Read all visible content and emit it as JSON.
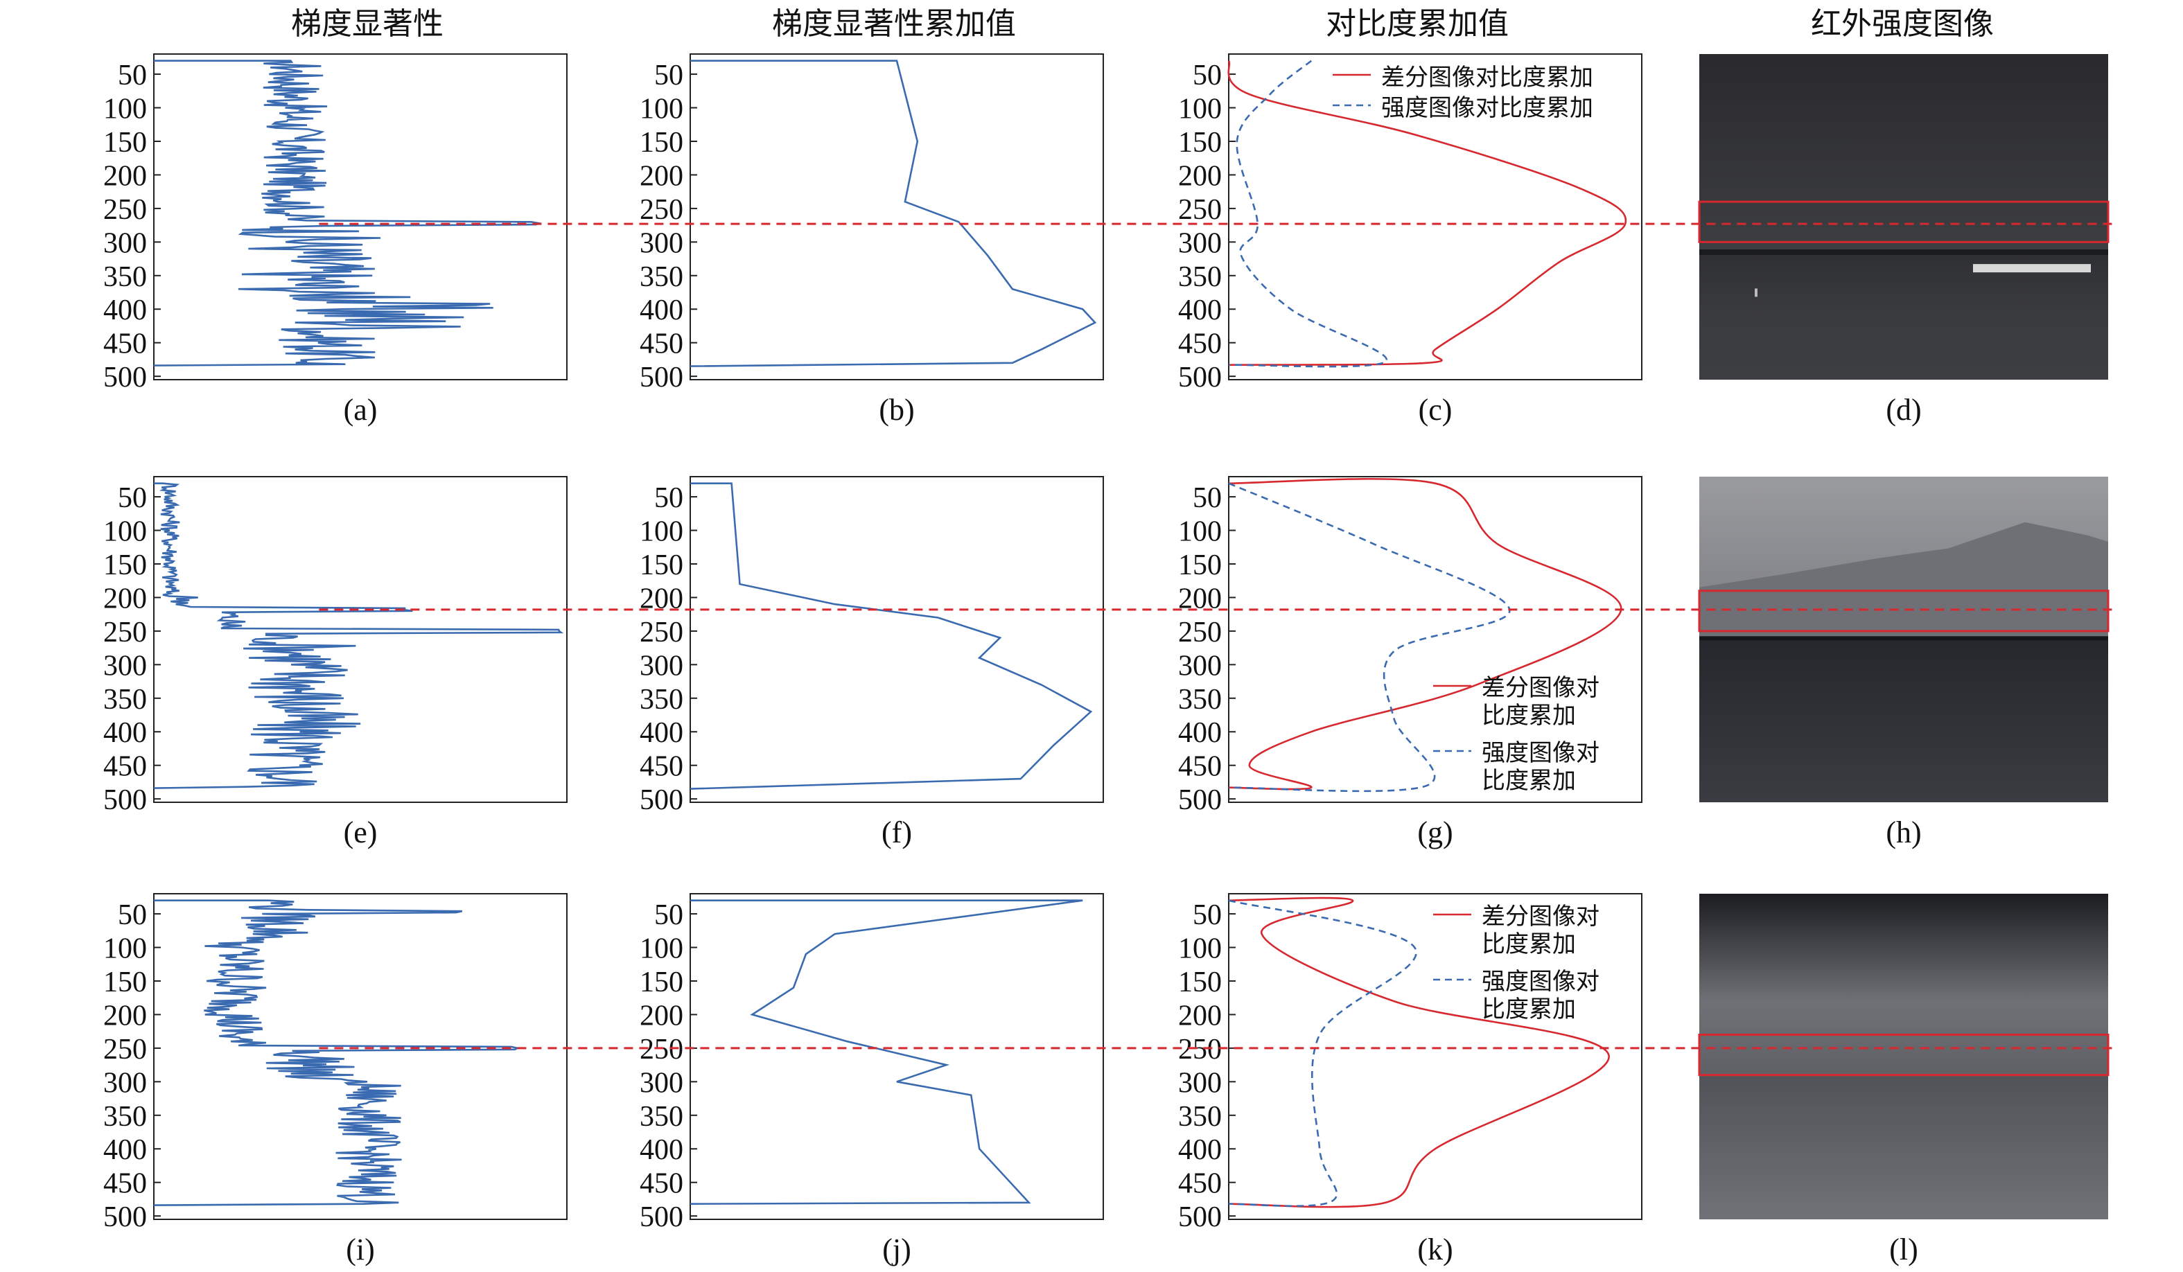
{
  "column_titles": [
    "梯度显著性",
    "梯度显著性累加值",
    "对比度累加值",
    "红外强度图像"
  ],
  "panel_labels": [
    "(a)",
    "(b)",
    "(c)",
    "(d)",
    "(e)",
    "(f)",
    "(g)",
    "(h)",
    "(i)",
    "(j)",
    "(k)",
    "(l)"
  ],
  "y_ticks": [
    "50",
    "100",
    "150",
    "200",
    "250",
    "300",
    "350",
    "400",
    "450",
    "500"
  ],
  "legend": {
    "diff_oneline": "差分图像对比度累加",
    "int_oneline": "强度图像对比度累加",
    "diff_line1": "差分图像对",
    "int_line1": "强度图像对",
    "line2": "比度累加"
  },
  "colors": {
    "blue": "#3a6ab0",
    "red": "#d7282f",
    "dash": "#d7282f"
  },
  "chart_data": [
    {
      "panel": "(a)",
      "type": "line",
      "ylim": [
        20,
        505
      ],
      "y_inverted": true,
      "threshold_row": 273,
      "series": [
        {
          "name": "梯度显著性",
          "x_range": [
            0.3,
            0.95
          ],
          "profile": "gradient"
        }
      ]
    },
    {
      "panel": "(b)",
      "type": "line",
      "ylim": [
        20,
        505
      ],
      "y_inverted": true,
      "threshold_row": 273,
      "series": [
        {
          "name": "梯度显著性累加值",
          "values": [
            [
              0,
              30
            ],
            [
              0.5,
              30
            ],
            [
              0.55,
              150
            ],
            [
              0.52,
              240
            ],
            [
              0.65,
              270
            ],
            [
              0.72,
              320
            ],
            [
              0.78,
              370
            ],
            [
              0.95,
              400
            ],
            [
              0.98,
              420
            ],
            [
              0.85,
              460
            ],
            [
              0.78,
              480
            ],
            [
              0,
              485
            ]
          ]
        }
      ]
    },
    {
      "panel": "(c)",
      "type": "line",
      "ylim": [
        20,
        505
      ],
      "y_inverted": true,
      "threshold_row": 273,
      "series": [
        {
          "name": "差分图像对比度累加",
          "values": [
            [
              0,
              30
            ],
            [
              0.05,
              80
            ],
            [
              0.45,
              140
            ],
            [
              0.85,
              220
            ],
            [
              0.96,
              273
            ],
            [
              0.8,
              330
            ],
            [
              0.65,
              400
            ],
            [
              0.5,
              460
            ],
            [
              0.48,
              480
            ],
            [
              0,
              483
            ]
          ]
        },
        {
          "name": "强度图像对比度累加",
          "values": [
            [
              0.2,
              30
            ],
            [
              0.1,
              80
            ],
            [
              0.02,
              150
            ],
            [
              0.07,
              273
            ],
            [
              0.03,
              320
            ],
            [
              0.15,
              400
            ],
            [
              0.38,
              478
            ],
            [
              0,
              483
            ]
          ]
        }
      ]
    },
    {
      "panel": "(e)",
      "type": "line",
      "ylim": [
        20,
        505
      ],
      "y_inverted": true,
      "threshold_row": 218,
      "series": [
        {
          "name": "梯度显著性",
          "x_range": [
            0.05,
            1.0
          ],
          "profile": "gradient"
        }
      ]
    },
    {
      "panel": "(f)",
      "type": "line",
      "ylim": [
        20,
        505
      ],
      "y_inverted": true,
      "threshold_row": 218,
      "series": [
        {
          "name": "梯度显著性累加值",
          "values": [
            [
              0,
              30
            ],
            [
              0.1,
              30
            ],
            [
              0.12,
              180
            ],
            [
              0.35,
              210
            ],
            [
              0.6,
              230
            ],
            [
              0.75,
              260
            ],
            [
              0.7,
              290
            ],
            [
              0.85,
              330
            ],
            [
              0.97,
              370
            ],
            [
              0.88,
              420
            ],
            [
              0.8,
              470
            ],
            [
              0,
              485
            ]
          ]
        }
      ]
    },
    {
      "panel": "(g)",
      "type": "line",
      "ylim": [
        20,
        505
      ],
      "y_inverted": true,
      "threshold_row": 218,
      "series": [
        {
          "name": "差分图像对比度累加",
          "values": [
            [
              0,
              30
            ],
            [
              0.5,
              30
            ],
            [
              0.65,
              120
            ],
            [
              0.95,
              218
            ],
            [
              0.6,
              330
            ],
            [
              0.2,
              400
            ],
            [
              0.05,
              450
            ],
            [
              0.2,
              483
            ],
            [
              0,
              483
            ]
          ]
        },
        {
          "name": "强度图像对比度累加",
          "values": [
            [
              0,
              30
            ],
            [
              0.35,
              120
            ],
            [
              0.68,
              218
            ],
            [
              0.4,
              280
            ],
            [
              0.4,
              380
            ],
            [
              0.48,
              480
            ],
            [
              0,
              483
            ]
          ]
        }
      ]
    },
    {
      "panel": "(i)",
      "type": "line",
      "ylim": [
        20,
        505
      ],
      "y_inverted": true,
      "threshold_row": 250,
      "series": [
        {
          "name": "梯度显著性",
          "x_range": [
            0.15,
            0.78
          ],
          "profile": "gradient"
        }
      ]
    },
    {
      "panel": "(j)",
      "type": "line",
      "ylim": [
        20,
        505
      ],
      "y_inverted": true,
      "threshold_row": 250,
      "series": [
        {
          "name": "梯度显著性累加值",
          "values": [
            [
              0,
              30
            ],
            [
              0.95,
              30
            ],
            [
              0.35,
              80
            ],
            [
              0.28,
              110
            ],
            [
              0.25,
              160
            ],
            [
              0.15,
              200
            ],
            [
              0.38,
              240
            ],
            [
              0.62,
              275
            ],
            [
              0.5,
              300
            ],
            [
              0.68,
              320
            ],
            [
              0.7,
              400
            ],
            [
              0.82,
              480
            ],
            [
              0,
              482
            ]
          ]
        }
      ]
    },
    {
      "panel": "(k)",
      "type": "line",
      "ylim": [
        20,
        505
      ],
      "y_inverted": true,
      "threshold_row": 250,
      "series": [
        {
          "name": "差分图像对比度累加",
          "values": [
            [
              0,
              30
            ],
            [
              0.3,
              30
            ],
            [
              0.08,
              80
            ],
            [
              0.4,
              180
            ],
            [
              0.92,
              260
            ],
            [
              0.5,
              400
            ],
            [
              0.38,
              480
            ],
            [
              0,
              482
            ]
          ]
        },
        {
          "name": "强度图像对比度累加",
          "values": [
            [
              0,
              30
            ],
            [
              0.45,
              100
            ],
            [
              0.22,
              230
            ],
            [
              0.22,
              400
            ],
            [
              0.25,
              478
            ],
            [
              0,
              482
            ]
          ]
        }
      ]
    }
  ]
}
